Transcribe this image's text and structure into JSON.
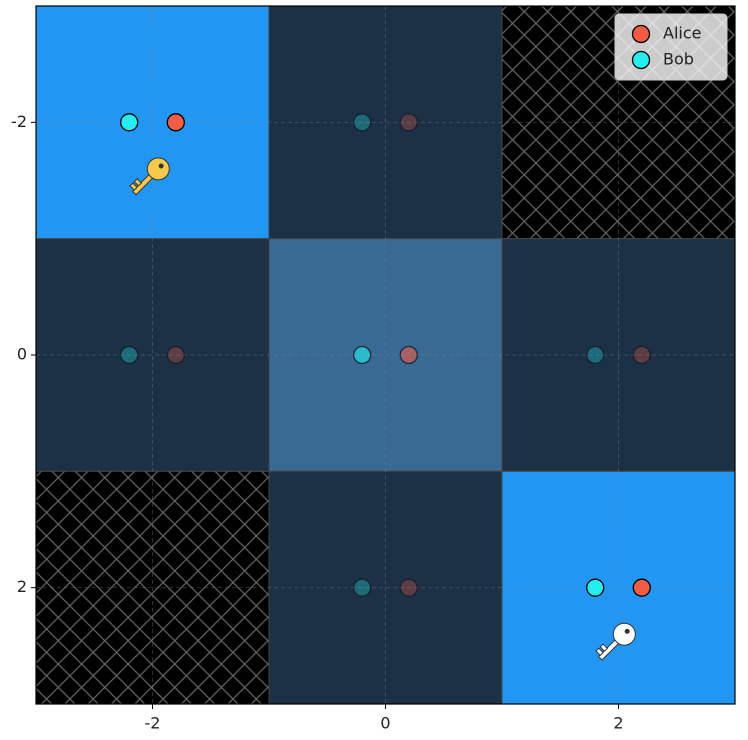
{
  "chart_data": {
    "type": "gridworld",
    "xlim": [
      -3,
      3
    ],
    "ylim": [
      3,
      -3
    ],
    "xticks": [
      -2,
      0,
      2
    ],
    "yticks": [
      -2,
      0,
      2
    ],
    "grid": true,
    "cells": [
      {
        "x": -2,
        "y": -2,
        "color": "#2196f3"
      },
      {
        "x": 0,
        "y": -2,
        "color": "#1c3046"
      },
      {
        "x": 2,
        "y": -2,
        "color": "#000000",
        "hatch": true
      },
      {
        "x": -2,
        "y": 0,
        "color": "#1c3046"
      },
      {
        "x": 0,
        "y": 0,
        "color": "#386a94"
      },
      {
        "x": 2,
        "y": 0,
        "color": "#1c3046"
      },
      {
        "x": -2,
        "y": 2,
        "color": "#000000",
        "hatch": true
      },
      {
        "x": 0,
        "y": 2,
        "color": "#1c3046"
      },
      {
        "x": 2,
        "y": 2,
        "color": "#2196f3"
      }
    ],
    "keys": [
      {
        "x": -1.95,
        "y": -1.6,
        "color": "#f7c94b"
      },
      {
        "x": 2.05,
        "y": 2.4,
        "color": "#ffffff"
      }
    ],
    "series": [
      {
        "name": "Alice",
        "color": "#f25c45",
        "x": [
          -1.8,
          0.2,
          -1.8,
          0.2,
          2.2,
          0.2,
          2.2
        ],
        "y": [
          -2,
          -2,
          0,
          0,
          0,
          2,
          2
        ],
        "alpha": [
          1,
          0.3,
          0.3,
          0.6,
          0.3,
          0.3,
          1
        ]
      },
      {
        "name": "Bob",
        "color": "#22f0f0",
        "x": [
          -2.2,
          -0.2,
          -2.2,
          -0.2,
          1.8,
          -0.2,
          1.8
        ],
        "y": [
          -2,
          -2,
          0,
          0,
          0,
          2,
          2
        ],
        "alpha": [
          1,
          0.3,
          0.3,
          0.6,
          0.3,
          0.3,
          1
        ]
      }
    ],
    "legend": "upper right"
  }
}
